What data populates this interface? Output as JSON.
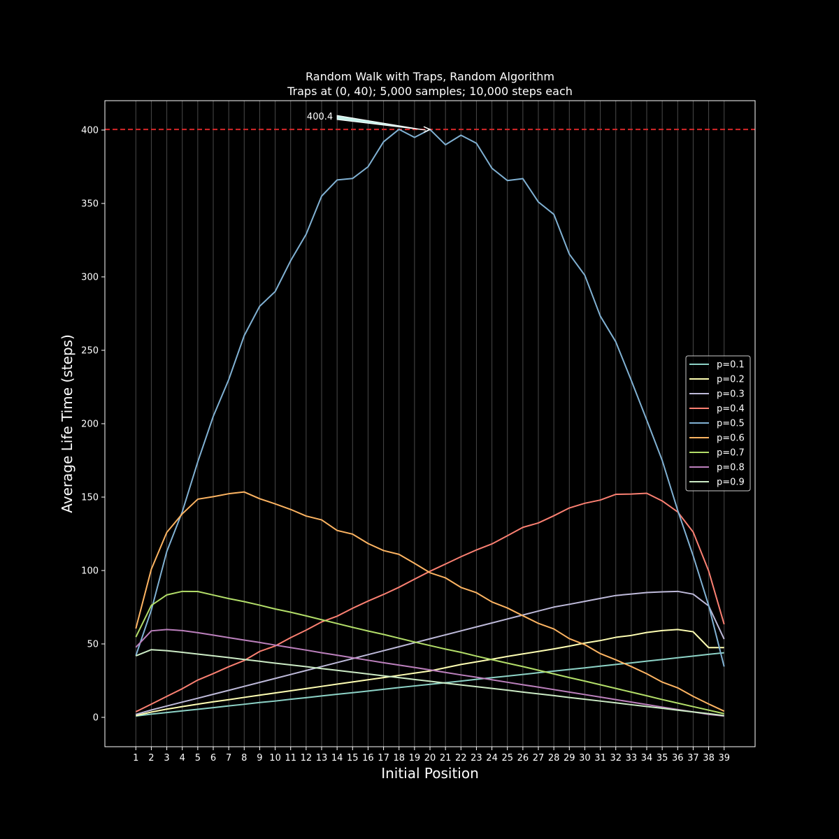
{
  "chart_data": {
    "type": "line",
    "title": "Random Walk with Traps, Random Algorithm",
    "subtitle": "Traps at (0, 40); 5,000 samples; 10,000 steps each",
    "xlabel": "Initial Position",
    "ylabel": "Average Life Time (steps)",
    "x": [
      1,
      2,
      3,
      4,
      5,
      6,
      7,
      8,
      9,
      10,
      11,
      12,
      13,
      14,
      15,
      16,
      17,
      18,
      19,
      20,
      21,
      22,
      23,
      24,
      25,
      26,
      27,
      28,
      29,
      30,
      31,
      32,
      33,
      34,
      35,
      36,
      37,
      38,
      39
    ],
    "xlim": [
      -1,
      41
    ],
    "ylim": [
      -20,
      420
    ],
    "yticks": [
      0,
      50,
      100,
      150,
      200,
      250,
      300,
      350,
      400
    ],
    "grid": "vertical",
    "legend_position": "center-right",
    "reference_line": {
      "y": 400.4,
      "color": "#d62728",
      "style": "dashed"
    },
    "annotation": {
      "text": "400.4",
      "x": 20,
      "y": 400.4
    },
    "series": [
      {
        "name": "p=0.1",
        "color": "#8dd3c7",
        "values": [
          0.9,
          2.2,
          3.3,
          4.4,
          5.5,
          6.6,
          7.8,
          8.9,
          10.1,
          11.1,
          12.3,
          13.4,
          14.6,
          15.7,
          16.8,
          17.9,
          19.1,
          20.3,
          21.4,
          22.5,
          23.6,
          24.7,
          25.9,
          27.0,
          28.1,
          29.2,
          30.4,
          31.5,
          32.6,
          33.7,
          34.9,
          36.0,
          37.1,
          38.3,
          39.4,
          40.6,
          41.7,
          42.9,
          44.0
        ]
      },
      {
        "name": "p=0.2",
        "color": "#ffffb3",
        "values": [
          1.2,
          3.6,
          5.6,
          7.3,
          9.0,
          10.6,
          12.0,
          13.6,
          15.1,
          16.6,
          18.1,
          19.6,
          21.1,
          22.6,
          24.1,
          25.6,
          27.1,
          28.6,
          30.1,
          31.6,
          33.8,
          36.0,
          37.8,
          39.6,
          41.5,
          43.2,
          44.9,
          46.6,
          48.5,
          50.6,
          52.3,
          54.5,
          55.8,
          57.8,
          59.1,
          59.8,
          58.3,
          47.5,
          47.5
        ]
      },
      {
        "name": "p=0.3",
        "color": "#bebada",
        "values": [
          2.0,
          5.0,
          7.7,
          10.4,
          13.0,
          15.7,
          18.4,
          21.1,
          23.8,
          26.5,
          29.2,
          31.9,
          34.6,
          37.3,
          40.0,
          42.7,
          45.4,
          48.1,
          50.8,
          53.5,
          56.2,
          58.9,
          61.6,
          64.3,
          67.0,
          69.7,
          72.4,
          75.1,
          77.0,
          79.0,
          81.0,
          83.0,
          84.0,
          85.0,
          85.5,
          85.8,
          83.9,
          75.9,
          53.3
        ]
      },
      {
        "name": "p=0.4",
        "color": "#fb8072",
        "values": [
          3.8,
          9.0,
          14.3,
          19.5,
          25.4,
          29.8,
          34.5,
          38.7,
          44.9,
          48.6,
          54.3,
          59.4,
          65.0,
          68.9,
          74.3,
          79.2,
          83.7,
          88.6,
          94.1,
          99.5,
          104.4,
          109.4,
          114.0,
          118.1,
          123.7,
          129.4,
          132.4,
          137.3,
          142.6,
          145.8,
          148.0,
          151.9,
          152.1,
          152.6,
          147.4,
          139.9,
          126.2,
          99.7,
          63.4
        ]
      },
      {
        "name": "p=0.5",
        "color": "#80b1d3",
        "values": [
          42.0,
          73.0,
          113.0,
          140.0,
          174.0,
          205.0,
          230.0,
          260.0,
          280.0,
          290.0,
          311.0,
          329.0,
          355.0,
          366.0,
          367.0,
          375.0,
          392.0,
          400.5,
          395.0,
          400.4,
          390.0,
          396.5,
          391.0,
          374.0,
          365.6,
          366.9,
          351.0,
          342.6,
          315.5,
          301.1,
          273.3,
          255.8,
          229.5,
          202.5,
          175.0,
          141.0,
          110.0,
          76.2,
          34.6
        ]
      },
      {
        "name": "p=0.6",
        "color": "#fdb462",
        "values": [
          60.5,
          100.9,
          126.0,
          138.6,
          148.6,
          150.3,
          152.3,
          153.5,
          148.9,
          145.4,
          141.6,
          137.1,
          134.5,
          127.3,
          124.8,
          118.4,
          113.6,
          111.0,
          104.9,
          98.5,
          95.0,
          88.5,
          84.9,
          78.6,
          74.5,
          69.2,
          64.0,
          60.2,
          53.6,
          49.5,
          43.4,
          39.2,
          34.6,
          29.7,
          24.0,
          20.1,
          14.3,
          9.1,
          4.2
        ]
      },
      {
        "name": "p=0.7",
        "color": "#b3de69",
        "values": [
          54.7,
          76.2,
          83.4,
          85.8,
          85.7,
          83.3,
          80.9,
          78.8,
          76.4,
          73.8,
          71.6,
          69.1,
          66.5,
          63.9,
          61.3,
          58.8,
          56.5,
          53.9,
          51.3,
          48.9,
          46.5,
          44.3,
          41.7,
          39.3,
          36.9,
          34.6,
          32.1,
          29.6,
          27.1,
          24.7,
          22.2,
          19.7,
          17.2,
          14.7,
          12.1,
          9.7,
          7.3,
          4.9,
          2.5
        ]
      },
      {
        "name": "p=0.8",
        "color": "#bc80bd",
        "values": [
          47.7,
          58.9,
          59.8,
          59.1,
          57.7,
          56.0,
          54.3,
          52.6,
          51.0,
          49.2,
          47.5,
          45.8,
          44.0,
          42.3,
          40.6,
          38.9,
          37.2,
          35.6,
          34.0,
          32.3,
          30.6,
          28.9,
          27.3,
          25.6,
          23.9,
          22.2,
          20.6,
          18.9,
          17.2,
          15.5,
          13.8,
          12.1,
          10.4,
          8.7,
          7.0,
          5.3,
          3.7,
          2.0,
          0.9
        ]
      },
      {
        "name": "p=0.9",
        "color": "#ccebc5",
        "values": [
          41.9,
          46.1,
          45.4,
          44.3,
          43.1,
          41.9,
          40.7,
          39.4,
          38.2,
          36.9,
          35.7,
          34.5,
          33.2,
          32.0,
          30.8,
          29.5,
          28.3,
          27.1,
          25.8,
          24.6,
          23.3,
          22.1,
          20.9,
          19.7,
          18.5,
          17.2,
          16.0,
          14.8,
          13.5,
          12.3,
          11.1,
          9.9,
          8.6,
          7.4,
          6.2,
          4.9,
          3.7,
          2.5,
          1.2
        ]
      }
    ]
  }
}
